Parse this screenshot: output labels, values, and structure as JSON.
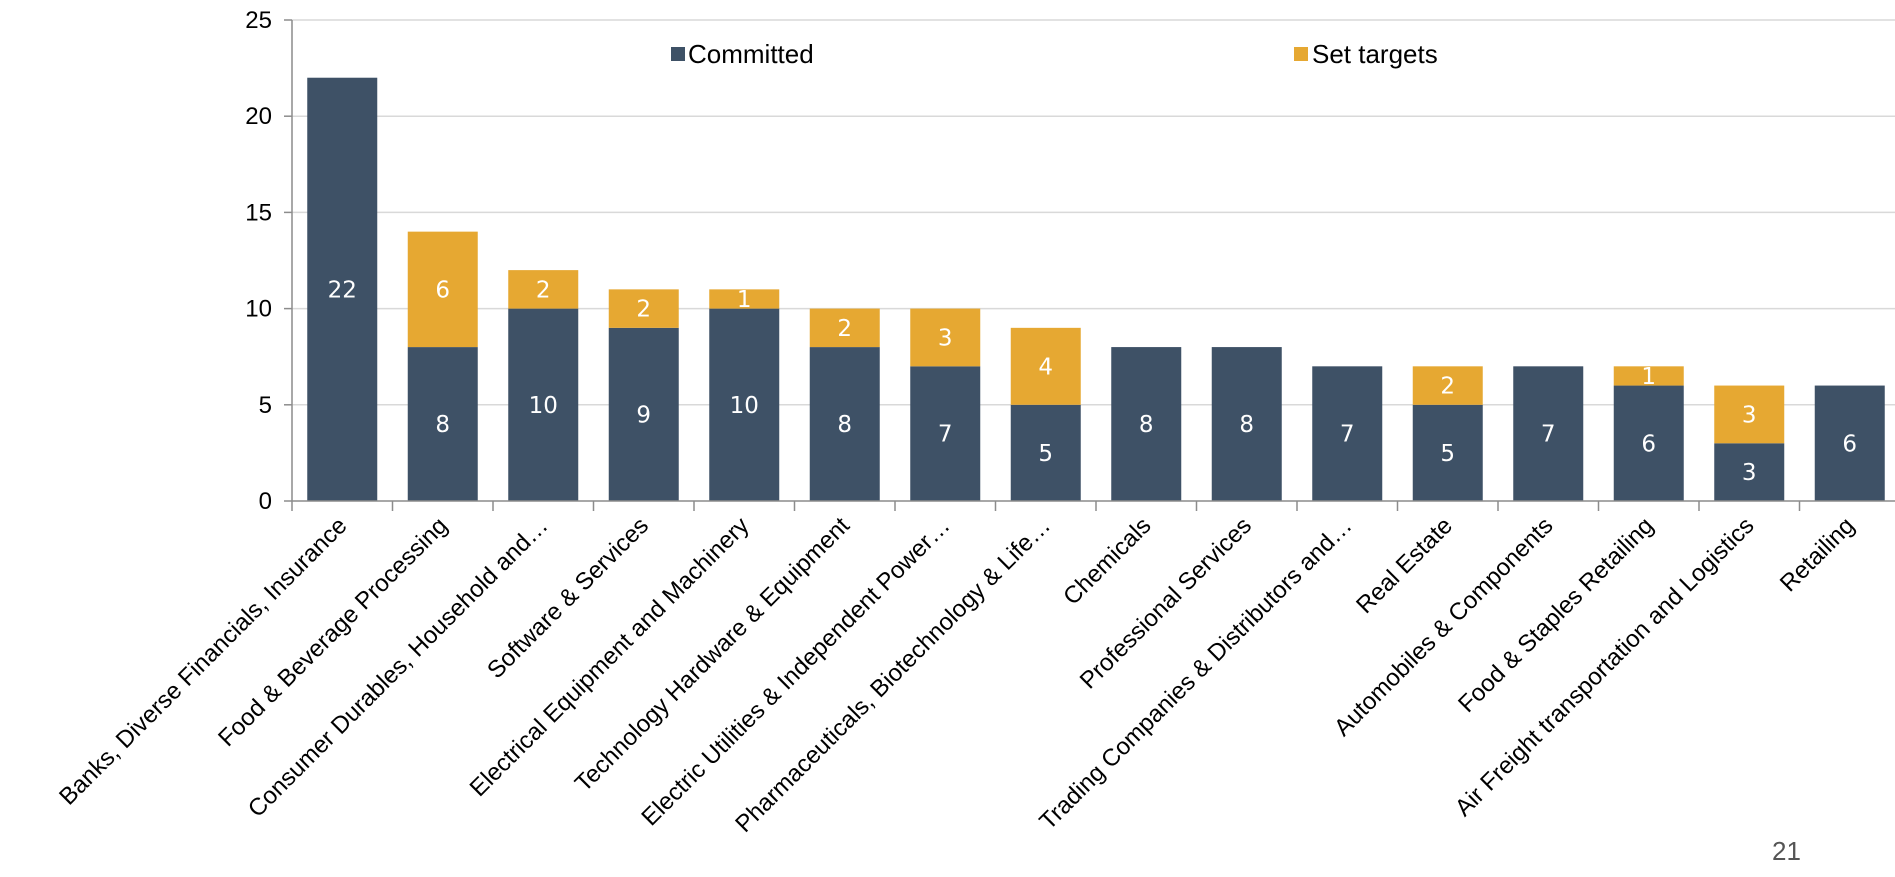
{
  "chart_data": {
    "type": "bar",
    "stacked": true,
    "categories": [
      "Banks, Diverse Financials, Insurance",
      "Food & Beverage Processing",
      "Consumer Durables, Household and…",
      "Software & Services",
      "Electrical Equipment and Machinery",
      "Technology Hardware & Equipment",
      "Electric Utilities & Independent Power…",
      "Pharmaceuticals, Biotechnology & Life…",
      "Chemicals",
      "Professional Services",
      "Trading Companies & Distributors and…",
      "Real Estate",
      "Automobiles & Components",
      "Food & Staples Retailing",
      "Air Freight transportation and Logistics",
      "Retailing"
    ],
    "series": [
      {
        "name": "Committed",
        "color": "#3e5166",
        "values": [
          22,
          8,
          10,
          9,
          10,
          8,
          7,
          5,
          8,
          8,
          7,
          5,
          7,
          6,
          3,
          6
        ]
      },
      {
        "name": "Set targets",
        "color": "#e6a832",
        "values": [
          0,
          6,
          2,
          2,
          1,
          2,
          3,
          4,
          0,
          0,
          0,
          2,
          0,
          1,
          3,
          0
        ]
      }
    ],
    "data_labels": {
      "Committed": [
        "22",
        "8",
        "10",
        "9",
        "10",
        "8",
        "7",
        "5",
        "8",
        "8",
        "7",
        "5",
        "7",
        "6",
        "3",
        "6"
      ],
      "Set targets": [
        "",
        "6",
        "2",
        "2",
        "1",
        "2",
        "3",
        "4",
        "",
        "",
        "",
        "2",
        "",
        "1",
        "3",
        ""
      ]
    },
    "ylim": [
      0,
      25
    ],
    "yticks": [
      "0",
      "5",
      "10",
      "15",
      "20",
      "25"
    ],
    "grid": true,
    "legend_position": "top"
  },
  "page_number": "21"
}
